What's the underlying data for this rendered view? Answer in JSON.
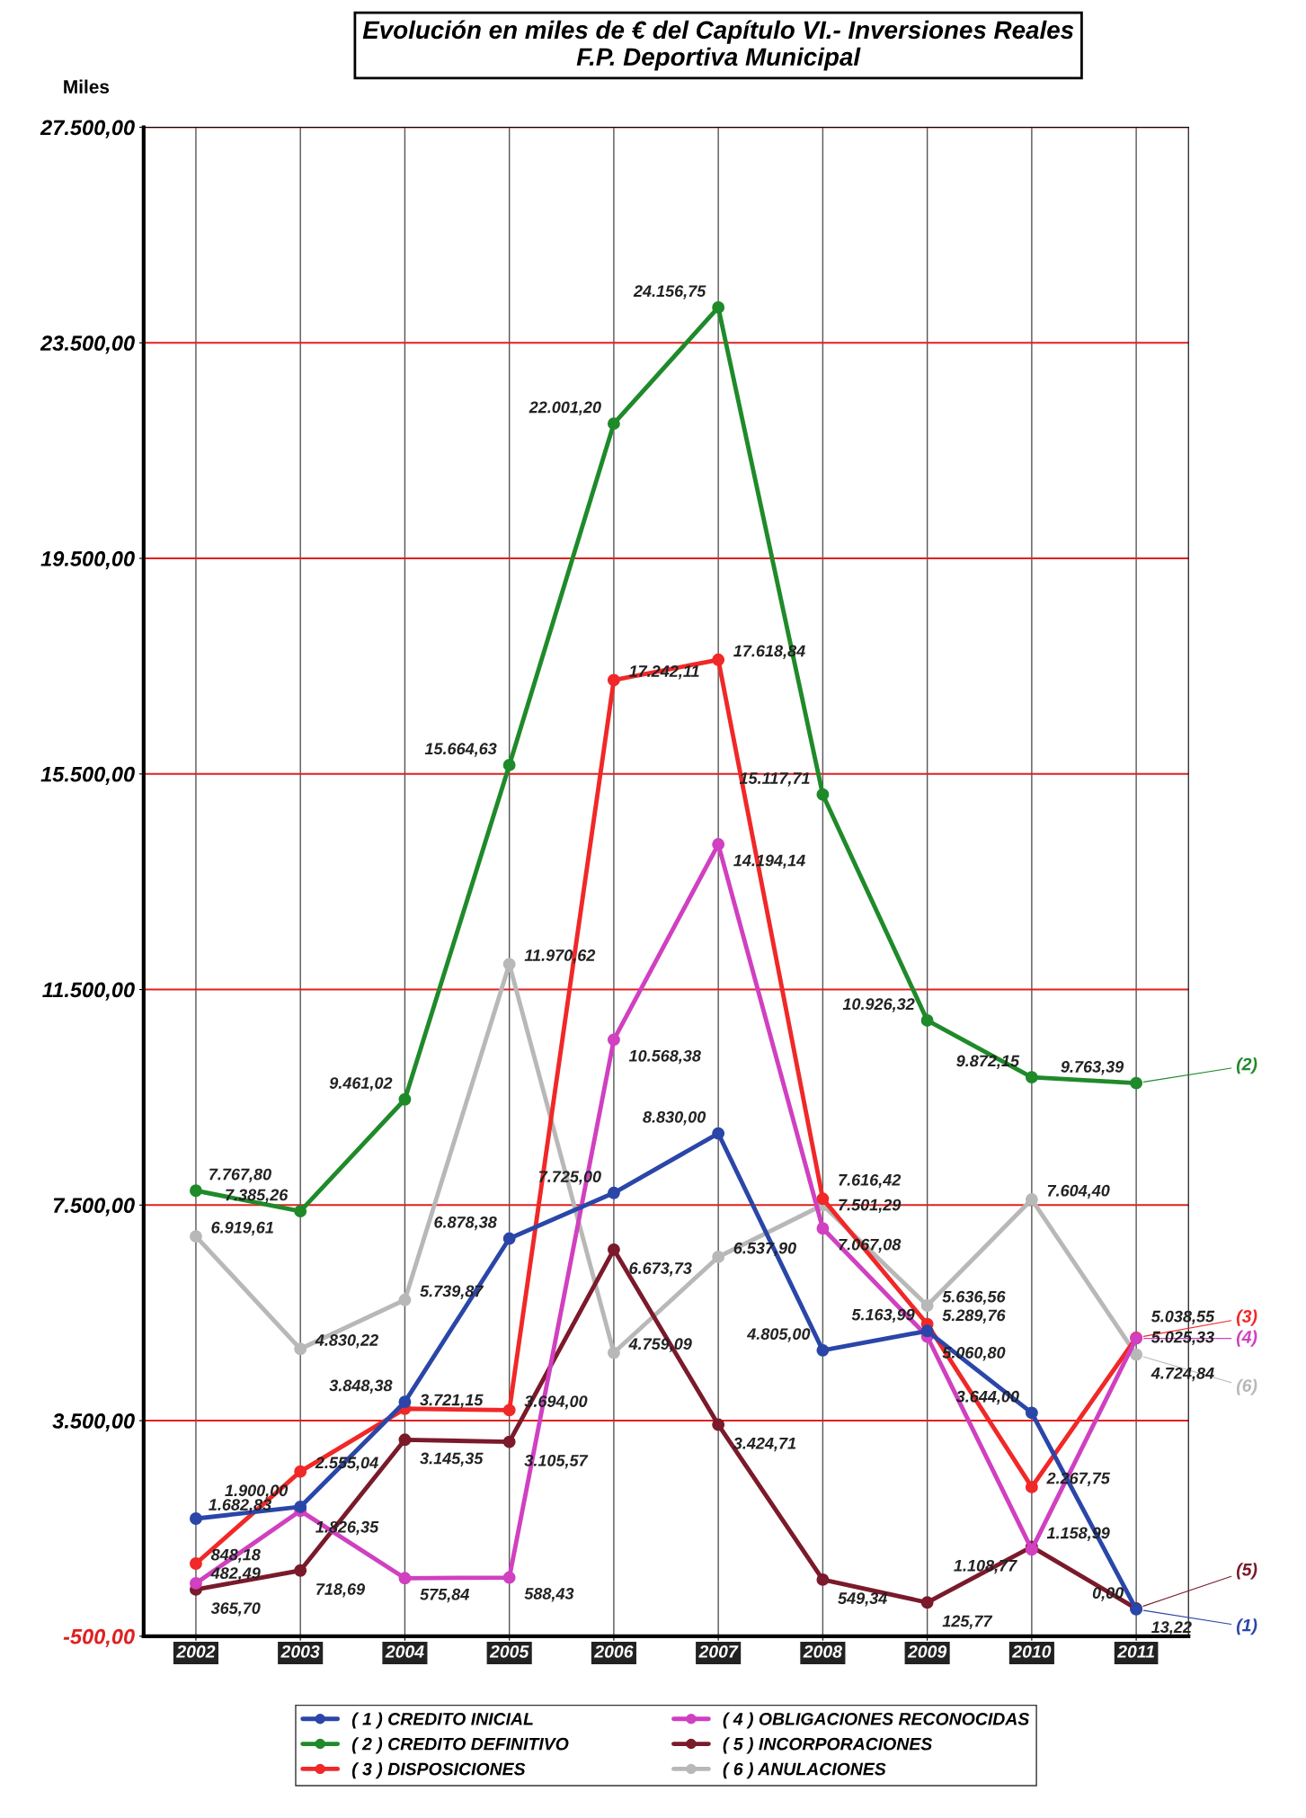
{
  "chart_data": {
    "type": "line",
    "title": "Evolución en miles de € del Capítulo VI.- Inversiones Reales",
    "subtitle": "F.P. Deportiva Municipal",
    "ylabel": "Miles",
    "categories": [
      "2002",
      "2003",
      "2004",
      "2005",
      "2006",
      "2007",
      "2008",
      "2009",
      "2010",
      "2011"
    ],
    "ylim": [
      -500,
      27500
    ],
    "yticks": [
      {
        "value": -500,
        "label": "-500,00"
      },
      {
        "value": 3500,
        "label": "3.500,00"
      },
      {
        "value": 7500,
        "label": "7.500,00"
      },
      {
        "value": 11500,
        "label": "11.500,00"
      },
      {
        "value": 15500,
        "label": "15.500,00"
      },
      {
        "value": 19500,
        "label": "19.500,00"
      },
      {
        "value": 23500,
        "label": "23.500,00"
      },
      {
        "value": 27500,
        "label": "27.500,00"
      }
    ],
    "grid": true,
    "legend": "bottom",
    "marker": "circle",
    "line_style": "solid",
    "series": [
      {
        "name": "( 1 ) CREDITO INICIAL",
        "color": "#2a46a8",
        "values": [
          1682.83,
          1900.0,
          3848.38,
          6878.38,
          7725.0,
          8830.0,
          4805.0,
          5163.99,
          3644.0,
          0.0
        ],
        "value_labels": [
          "1.682,83",
          "1.900,00",
          "3.848,38",
          "6.878,38",
          "7.725,00",
          "8.830,00",
          "4.805,00",
          "5.163,99",
          "3.644,00",
          "0,00"
        ]
      },
      {
        "name": "( 2 ) CREDITO DEFINITIVO",
        "color": "#1f8a2a",
        "values": [
          7767.8,
          7385.26,
          9461.02,
          15664.63,
          22001.2,
          24156.75,
          15117.71,
          10926.32,
          9872.15,
          9763.39
        ],
        "value_labels": [
          "7.767,80",
          "7.385,26",
          "9.461,02",
          "15.664,63",
          "22.001,20",
          "24.156,75",
          "15.117,71",
          "10.926,32",
          "9.872,15",
          "9.763,39"
        ]
      },
      {
        "name": "( 3 ) DISPOSICIONES",
        "color": "#f02828",
        "values": [
          848.18,
          2555.04,
          3721.15,
          3694.0,
          17242.11,
          17618.84,
          7616.42,
          5289.76,
          2267.75,
          5038.55
        ],
        "value_labels": [
          "848,18",
          "2.555,04",
          "3.721,15",
          "3.694,00",
          "17.242,11",
          "17.618,84",
          "7.616,42",
          "5.289,76",
          "2.267,75",
          "5.038,55"
        ]
      },
      {
        "name": "( 4 ) OBLIGACIONES RECONOCIDAS",
        "color": "#d040c0",
        "values": [
          482.49,
          1826.35,
          575.84,
          588.43,
          10568.38,
          14194.14,
          7067.08,
          5060.8,
          1108.77,
          5025.33
        ],
        "value_labels": [
          "482,49",
          "1.826,35",
          "575,84",
          "588,43",
          "10.568,38",
          "14.194,14",
          "7.067,08",
          "5.060,80",
          "1.108,77",
          "5.025,33"
        ]
      },
      {
        "name": "( 5 ) INCORPORACIONES",
        "color": "#7a1a2a",
        "values": [
          365.7,
          718.69,
          3145.35,
          3105.57,
          6673.73,
          3424.71,
          549.34,
          125.77,
          1158.99,
          13.22
        ],
        "value_labels": [
          "365,70",
          "718,69",
          "3.145,35",
          "3.105,57",
          "6.673,73",
          "3.424,71",
          "549,34",
          "125,77",
          "1.158,99",
          "13,22"
        ]
      },
      {
        "name": "( 6 ) ANULACIONES",
        "color": "#b8b8b8",
        "values": [
          6919.61,
          4830.22,
          5739.87,
          11970.62,
          4759.09,
          6537.9,
          7501.29,
          5636.56,
          7604.4,
          4724.84
        ],
        "value_labels": [
          "6.919,61",
          "4.830,22",
          "5.739,87",
          "11.970,62",
          "4.759,09",
          "6.537,90",
          "7.501,29",
          "5.636,56",
          "7.604,40",
          "4.724,84"
        ]
      }
    ],
    "annotations": [
      {
        "text": "(1)",
        "x": "2011",
        "y": 0
      },
      {
        "text": "(2)",
        "x": "2011",
        "y": 9763.39
      },
      {
        "text": "(3)",
        "x": "2011",
        "y": 5038.55
      },
      {
        "text": "(4)",
        "x": "2011",
        "y": 5025.33
      },
      {
        "text": "(5)",
        "x": "2011",
        "y": 13.22
      },
      {
        "text": "(6)",
        "x": "2011",
        "y": 4724.84
      }
    ]
  }
}
